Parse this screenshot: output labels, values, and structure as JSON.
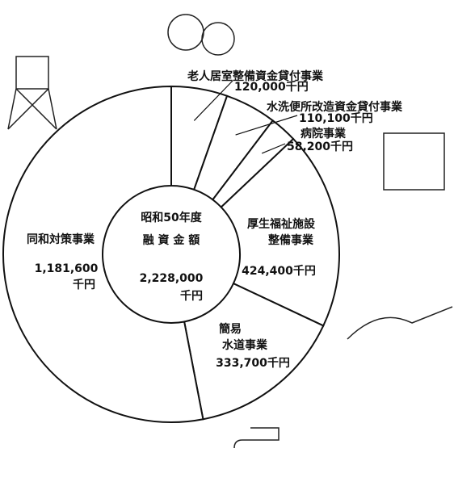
{
  "chart_data": {
    "type": "pie",
    "center_title": [
      "昭和50年度",
      "融 資 金 額"
    ],
    "total": 2228000,
    "total_label": "2,228,000千円",
    "categories": [
      "老人居室整備資金貸付事業",
      "水洗便所改造資金貸付事業",
      "病院事業",
      "厚生福祉施設整備事業",
      "簡易水道事業",
      "同和対策事業"
    ],
    "values": [
      120000,
      110100,
      58200,
      424400,
      333700,
      1181600
    ],
    "value_labels": [
      "120,000千円",
      "110,100千円",
      "58,200千円",
      "424,400千円",
      "333,700千円",
      "1,181,600千円"
    ],
    "color": "#ffffff"
  }
}
